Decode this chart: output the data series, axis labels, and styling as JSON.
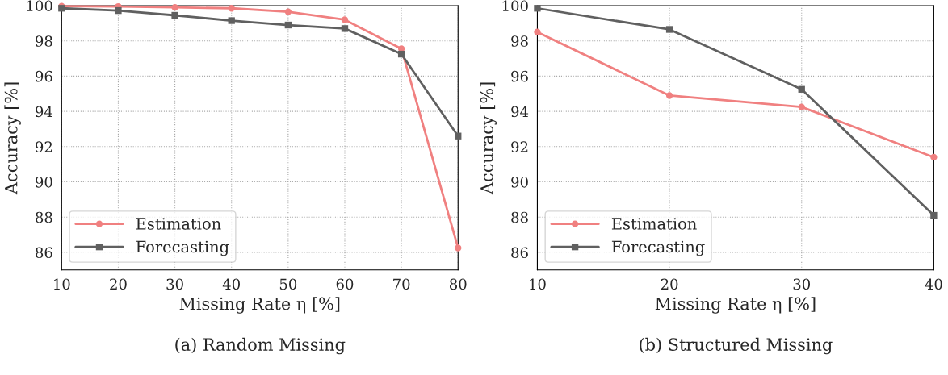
{
  "chart_data": [
    {
      "type": "line",
      "title": "(a) Random Missing",
      "xlabel": "Missing Rate η [%]",
      "ylabel": "Accuracy [%]",
      "x": [
        10,
        20,
        30,
        40,
        50,
        60,
        70,
        80
      ],
      "series": [
        {
          "name": "Estimation",
          "color": "#f08080",
          "marker": "circle",
          "values": [
            99.97,
            99.95,
            99.9,
            99.85,
            99.65,
            99.2,
            97.55,
            86.25
          ]
        },
        {
          "name": "Forecasting",
          "color": "#606060",
          "marker": "square",
          "values": [
            99.85,
            99.72,
            99.45,
            99.15,
            98.9,
            98.7,
            97.25,
            92.6
          ]
        }
      ],
      "xlim": [
        10,
        80
      ],
      "xticks": [
        10,
        20,
        30,
        40,
        50,
        60,
        70,
        80
      ],
      "ylim": [
        85,
        100
      ],
      "yticks": [
        86,
        88,
        90,
        92,
        94,
        96,
        98,
        100
      ],
      "grid": true,
      "legend": "bottom left",
      "line_style": "solid"
    },
    {
      "type": "line",
      "title": "(b) Structured Missing",
      "xlabel": "Missing Rate η [%]",
      "ylabel": "Accuracy [%]",
      "x": [
        10,
        20,
        30,
        40
      ],
      "series": [
        {
          "name": "Estimation",
          "color": "#f08080",
          "marker": "circle",
          "values": [
            98.5,
            94.9,
            94.25,
            91.4
          ]
        },
        {
          "name": "Forecasting",
          "color": "#606060",
          "marker": "square",
          "values": [
            99.85,
            98.65,
            95.25,
            88.1
          ]
        }
      ],
      "xlim": [
        10,
        40
      ],
      "xticks": [
        10,
        20,
        30,
        40
      ],
      "ylim": [
        85,
        100
      ],
      "yticks": [
        86,
        88,
        90,
        92,
        94,
        96,
        98,
        100
      ],
      "grid": true,
      "legend": "bottom left",
      "line_style": "solid"
    }
  ]
}
